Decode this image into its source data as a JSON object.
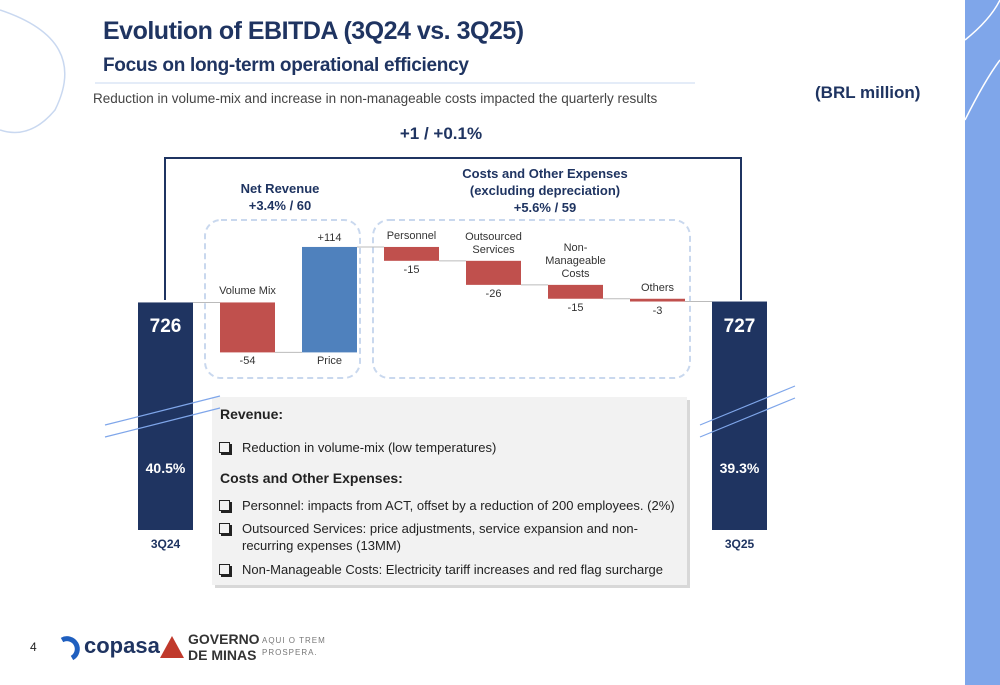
{
  "header": {
    "title": "Evolution of EBITDA (3Q24 vs. 3Q25)",
    "subtitle": "Focus on long-term operational efficiency",
    "description": "Reduction in volume-mix and increase in non-manageable costs impacted the quarterly results",
    "unit": "(BRL million)"
  },
  "chart_data": {
    "type": "waterfall",
    "total_change": "+1 / +0.1%",
    "groups": [
      {
        "title": "Net Revenue",
        "change": "+3.4% / 60"
      },
      {
        "title": "Costs and Other Expenses (excluding depreciation)",
        "change": "+5.6% / 59"
      }
    ],
    "categories": [
      "3Q24",
      "Volume Mix",
      "Price",
      "Personnel",
      "Outsourced Services",
      "Non-Manageable Costs",
      "Others",
      "3Q25"
    ],
    "measure": [
      "total",
      "relative",
      "relative",
      "relative",
      "relative",
      "relative",
      "relative",
      "total"
    ],
    "values": [
      726,
      -54,
      114,
      -15,
      -26,
      -15,
      -3,
      727
    ],
    "value_labels": [
      "726",
      "-54",
      "+114",
      "-15",
      "-26",
      "-15",
      "-3",
      "727"
    ],
    "ebitda_margins": [
      "40.5%",
      null,
      null,
      null,
      null,
      null,
      null,
      "39.3%"
    ],
    "colors": {
      "total": "#1f3461",
      "increase": "#4f81bd",
      "decrease": "#c0504d"
    },
    "ylim": [
      480,
      800
    ]
  },
  "notes": {
    "revenue_heading": "Revenue:",
    "revenue_items": [
      "Reduction in volume-mix (low temperatures)"
    ],
    "costs_heading": "Costs and Other Expenses:",
    "costs_items": [
      "Personnel: impacts from ACT, offset by a reduction of 200 employees. (2%)",
      "Outsourced Services: price adjustments, service expansion and non-recurring expenses (13MM)",
      "Non-Manageable Costs: Electricity tariff increases and red flag surcharge"
    ]
  },
  "footer": {
    "page": "4",
    "brand": "copasa",
    "government": [
      "GOVERNO",
      "DE MINAS"
    ],
    "slogan": [
      "AQUI O TREM",
      "PROSPERA."
    ]
  }
}
